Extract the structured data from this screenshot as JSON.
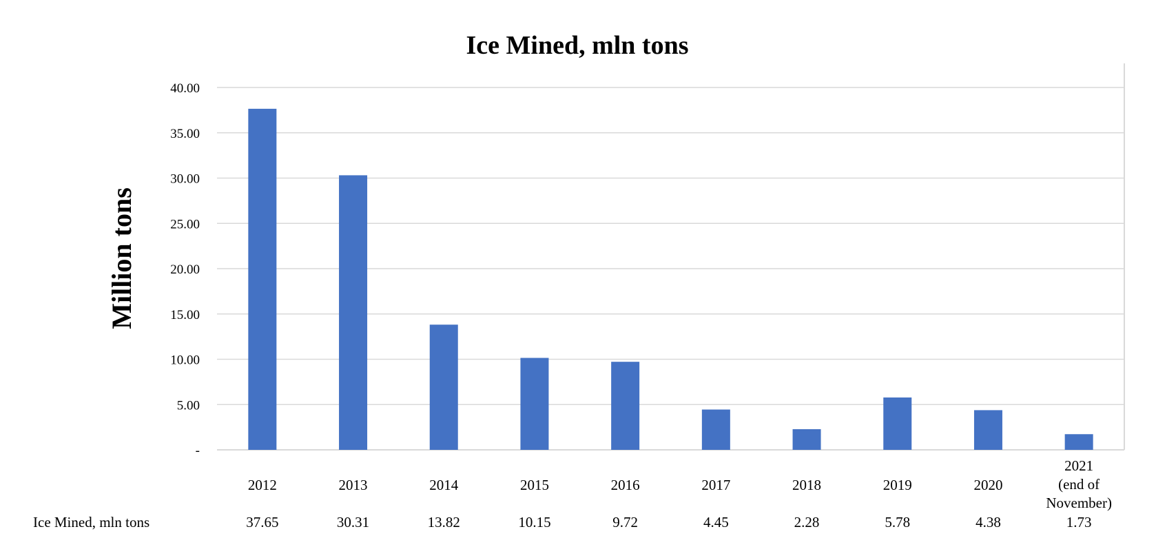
{
  "chart_data": {
    "type": "bar",
    "title": "Ice Mined, mln tons",
    "xlabel": "",
    "ylabel": "Million tons",
    "ylim": [
      0,
      40
    ],
    "yticks": [
      "-",
      "5.00",
      "10.00",
      "15.00",
      "20.00",
      "25.00",
      "30.00",
      "35.00",
      "40.00"
    ],
    "ytick_values": [
      0,
      5,
      10,
      15,
      20,
      25,
      30,
      35,
      40
    ],
    "grid": true,
    "legend": "none",
    "categories": [
      "2012",
      "2013",
      "2014",
      "2015",
      "2016",
      "2017",
      "2018",
      "2019",
      "2020",
      [
        "2021",
        "(end of",
        "November)"
      ]
    ],
    "series": [
      {
        "name": "Ice Mined, mln tons",
        "values": [
          37.65,
          30.31,
          13.82,
          10.15,
          9.72,
          4.45,
          2.28,
          5.78,
          4.38,
          1.73
        ],
        "value_labels": [
          "37.65",
          "30.31",
          "13.82",
          "10.15",
          "9.72",
          "4.45",
          "2.28",
          "5.78",
          "4.38",
          "1.73"
        ],
        "color": "#4472c4"
      }
    ],
    "data_table": true,
    "colors": {
      "bar": "#4472c4",
      "grid": "#d9d9d9",
      "axis": "#d9d9d9"
    }
  }
}
